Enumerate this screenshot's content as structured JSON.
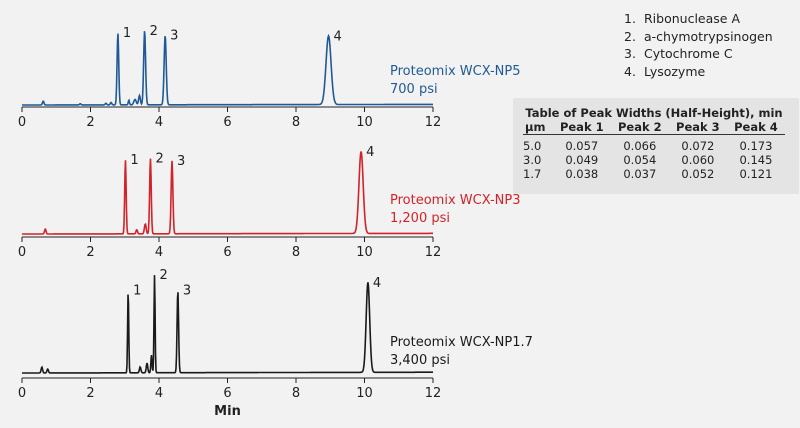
{
  "chart_data": {
    "type": "line",
    "xlabel": "Min",
    "xlim": [
      0,
      12
    ],
    "xticks": [
      0,
      2,
      4,
      6,
      8,
      10,
      12
    ],
    "panels": [
      {
        "name": "Proteomix WCX-NP5",
        "pressure": "700 psi",
        "color": "#1f5a96",
        "peaks": [
          {
            "label": "1",
            "rt": 2.8,
            "height": 92,
            "width": 0.057
          },
          {
            "label": "2",
            "rt": 3.58,
            "height": 95,
            "width": 0.066
          },
          {
            "label": "3",
            "rt": 4.18,
            "height": 89,
            "width": 0.072
          },
          {
            "label": "4",
            "rt": 8.95,
            "height": 88,
            "width": 0.173
          }
        ],
        "minor": [
          {
            "rt": 0.62,
            "height": 5,
            "width": 0.05
          },
          {
            "rt": 1.7,
            "height": 1.5,
            "width": 0.05
          },
          {
            "rt": 2.45,
            "height": 2,
            "width": 0.05
          },
          {
            "rt": 2.6,
            "height": 3,
            "width": 0.05
          },
          {
            "rt": 3.12,
            "height": 6,
            "width": 0.04
          },
          {
            "rt": 3.3,
            "height": 7,
            "width": 0.08
          },
          {
            "rt": 3.43,
            "height": 12,
            "width": 0.06
          }
        ]
      },
      {
        "name": "Proteomix WCX-NP3",
        "pressure": "1,200 psi",
        "color": "#d2232a",
        "peaks": [
          {
            "label": "1",
            "rt": 3.02,
            "height": 90,
            "width": 0.049
          },
          {
            "label": "2",
            "rt": 3.75,
            "height": 92,
            "width": 0.054
          },
          {
            "label": "3",
            "rt": 4.38,
            "height": 89,
            "width": 0.06
          },
          {
            "label": "4",
            "rt": 9.9,
            "height": 100,
            "width": 0.145
          }
        ],
        "minor": [
          {
            "rt": 0.68,
            "height": 6,
            "width": 0.05
          },
          {
            "rt": 3.35,
            "height": 5,
            "width": 0.05
          },
          {
            "rt": 3.6,
            "height": 12,
            "width": 0.06
          }
        ]
      },
      {
        "name": "Proteomix WCX-NP1.7",
        "pressure": "3,400 psi",
        "color": "#1a1a1a",
        "peaks": [
          {
            "label": "1",
            "rt": 3.1,
            "height": 84,
            "width": 0.038
          },
          {
            "label": "2",
            "rt": 3.87,
            "height": 100,
            "width": 0.037
          },
          {
            "label": "3",
            "rt": 4.55,
            "height": 84,
            "width": 0.052
          },
          {
            "label": "4",
            "rt": 10.1,
            "height": 92,
            "width": 0.121
          }
        ],
        "minor": [
          {
            "rt": 0.58,
            "height": 6,
            "width": 0.05
          },
          {
            "rt": 0.75,
            "height": 4,
            "width": 0.05
          },
          {
            "rt": 3.45,
            "height": 6,
            "width": 0.05
          },
          {
            "rt": 3.65,
            "height": 10,
            "width": 0.05
          },
          {
            "rt": 3.78,
            "height": 18,
            "width": 0.04
          }
        ]
      }
    ]
  },
  "legend": [
    {
      "num": "1.",
      "name": "Ribonuclease A"
    },
    {
      "num": "2.",
      "name": "a-chymotrypsinogen"
    },
    {
      "num": "3.",
      "name": "Cytochrome C"
    },
    {
      "num": "4.",
      "name": "Lysozyme"
    }
  ],
  "table": {
    "title": "Table of Peak Widths (Half-Height), min",
    "headers": [
      "µm",
      "Peak 1",
      "Peak 2",
      "Peak 3",
      "Peak 4"
    ],
    "rows": [
      [
        "5.0",
        "0.057",
        "0.066",
        "0.072",
        "0.173"
      ],
      [
        "3.0",
        "0.049",
        "0.054",
        "0.060",
        "0.145"
      ],
      [
        "1.7",
        "0.038",
        "0.037",
        "0.052",
        "0.121"
      ]
    ]
  }
}
